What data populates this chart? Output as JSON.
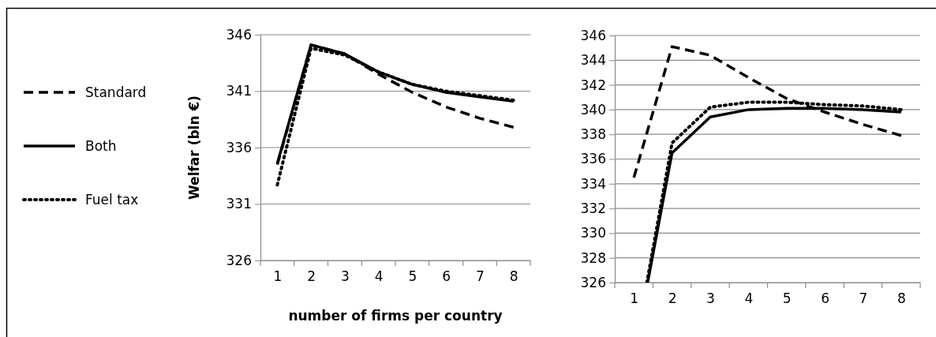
{
  "chart_data": [
    {
      "type": "line",
      "ylabel": "Welfar (bln €)",
      "xlabel": "number of firms per country",
      "xlim": [
        0.5,
        8.5
      ],
      "xticks": [
        1,
        2,
        3,
        4,
        5,
        6,
        7,
        8
      ],
      "ylim": [
        326,
        346
      ],
      "yticks": [
        326,
        331,
        336,
        341,
        346
      ],
      "grid": "y",
      "legend": "left",
      "marker": "none",
      "series": [
        {
          "name": "Standard",
          "color": "#000000",
          "line_style": "dashed",
          "x": [
            1,
            2,
            3,
            4,
            5,
            6,
            7,
            8
          ],
          "values": [
            334.5,
            345.1,
            344.3,
            342.5,
            340.9,
            339.6,
            338.6,
            337.8
          ]
        },
        {
          "name": "Both",
          "color": "#000000",
          "line_style": "solid",
          "x": [
            1,
            2,
            3,
            4,
            5,
            6,
            7,
            8
          ],
          "values": [
            334.6,
            345.1,
            344.3,
            342.7,
            341.6,
            340.9,
            340.5,
            340.1
          ]
        },
        {
          "name": "Fuel tax",
          "color": "#000000",
          "line_style": "dotted",
          "x": [
            1,
            2,
            3,
            4,
            5,
            6,
            7,
            8
          ],
          "values": [
            332.7,
            344.8,
            344.2,
            342.7,
            341.6,
            341.0,
            340.6,
            340.2
          ]
        }
      ]
    },
    {
      "type": "line",
      "xlim": [
        0.5,
        8.5
      ],
      "xticks": [
        1,
        2,
        3,
        4,
        5,
        6,
        7,
        8
      ],
      "ylim": [
        326,
        346
      ],
      "yticks": [
        326,
        328,
        330,
        332,
        334,
        336,
        338,
        340,
        342,
        344,
        346
      ],
      "grid": "y",
      "marker": "none",
      "series": [
        {
          "color": "#000000",
          "line_style": "dashed",
          "x": [
            1,
            2,
            3,
            4,
            5,
            6,
            7,
            8
          ],
          "values": [
            334.5,
            345.1,
            344.4,
            342.6,
            340.9,
            339.8,
            338.8,
            337.9
          ]
        },
        {
          "color": "#000000",
          "line_style": "solid",
          "x": [
            1.36,
            2,
            3,
            4,
            5,
            6,
            7,
            8
          ],
          "values": [
            326,
            336.5,
            339.4,
            340.0,
            340.1,
            340.1,
            340.0,
            339.8
          ]
        },
        {
          "color": "#000000",
          "line_style": "dotted",
          "x": [
            1.34,
            2,
            3,
            4,
            5,
            6,
            7,
            8
          ],
          "values": [
            326,
            337.3,
            340.2,
            340.6,
            340.6,
            340.4,
            340.3,
            340.0
          ]
        }
      ]
    }
  ]
}
